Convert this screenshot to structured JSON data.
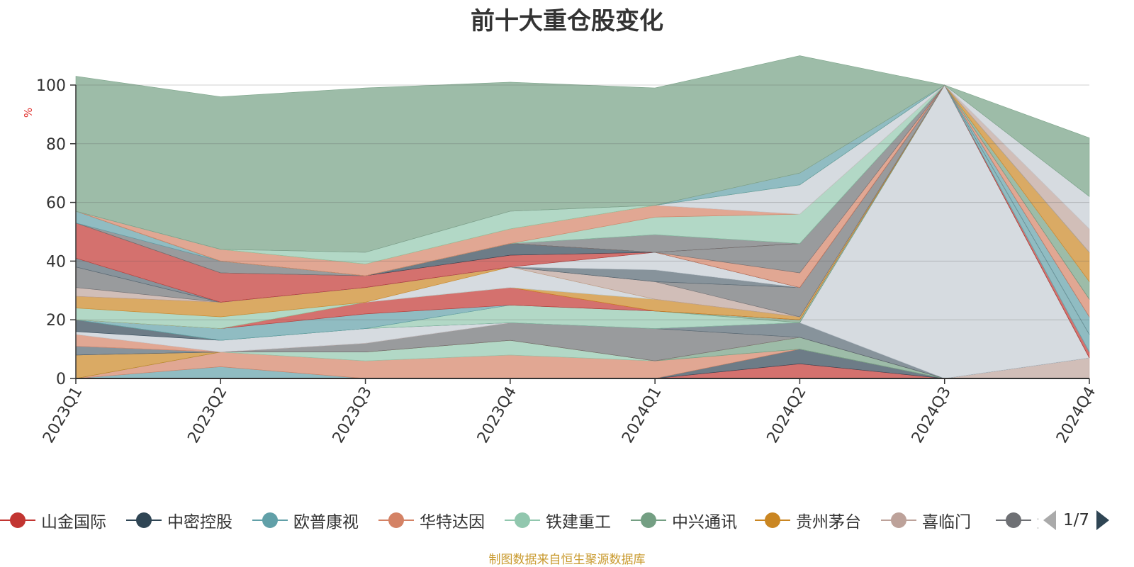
{
  "chart_data": {
    "type": "area",
    "title": "前十大重仓股变化",
    "ylabel": "%",
    "ylim": [
      0,
      100
    ],
    "yticks": [
      0,
      20,
      40,
      60,
      80,
      100
    ],
    "grid": true,
    "stacked": true,
    "categories": [
      "2023Q1",
      "2023Q2",
      "2023Q3",
      "2023Q4",
      "2024Q1",
      "2024Q2",
      "2024Q3",
      "2024Q4"
    ],
    "legend_position": "bottom",
    "legend_page": "1/7",
    "source": "制图数据来自恒生聚源数据库",
    "series": [
      {
        "name": "山金国际",
        "color": "#c23531",
        "values": [
          0,
          0,
          0,
          0,
          0,
          5,
          0,
          0
        ]
      },
      {
        "name": "中密控股",
        "color": "#2f4554",
        "values": [
          0,
          0,
          0,
          0,
          0,
          5,
          0,
          0
        ]
      },
      {
        "name": "欧普康视",
        "color": "#61a0a8",
        "values": [
          0,
          4,
          0,
          0,
          0,
          0,
          0,
          0
        ]
      },
      {
        "name": "华特达因",
        "color": "#d48265",
        "values": [
          0,
          5,
          6,
          8,
          6,
          0,
          0,
          0
        ]
      },
      {
        "name": "铁建重工",
        "color": "#91c7ae",
        "values": [
          0,
          0,
          3,
          5,
          0,
          0,
          0,
          0
        ]
      },
      {
        "name": "中兴通讯",
        "color": "#749f83",
        "values": [
          0,
          0,
          0,
          0,
          0,
          4,
          0,
          0
        ]
      },
      {
        "name": "贵州茅台",
        "color": "#ca8622",
        "values": [
          8,
          0,
          0,
          0,
          0,
          0,
          0,
          0
        ]
      },
      {
        "name": "喜临门",
        "color": "#bda29a",
        "values": [
          0,
          0,
          0,
          0,
          0,
          0,
          0,
          7
        ]
      },
      {
        "name": "大秦铁路",
        "color": "#6e7074",
        "values": [
          0,
          0,
          3,
          6,
          11,
          0,
          0,
          0
        ]
      },
      {
        "name": "",
        "color": "#546570",
        "values": [
          3,
          0,
          0,
          0,
          0,
          5,
          0,
          0
        ]
      },
      {
        "name": "",
        "color": "#c4ccd3",
        "values": [
          0,
          0,
          0,
          0,
          0,
          0,
          100,
          0
        ]
      },
      {
        "name": "",
        "color": "#d48265",
        "values": [
          4,
          0,
          0,
          0,
          0,
          0,
          0,
          0
        ]
      },
      {
        "name": "",
        "color": "#c4ccd3",
        "values": [
          1,
          4,
          5,
          0,
          0,
          0,
          0,
          0
        ]
      },
      {
        "name": "",
        "color": "#2f4554",
        "values": [
          4,
          0,
          0,
          0,
          0,
          0,
          0,
          0
        ]
      },
      {
        "name": "",
        "color": "#91c7ae",
        "values": [
          0,
          0,
          0,
          6,
          6,
          0,
          0,
          0
        ]
      },
      {
        "name": "",
        "color": "#749f83",
        "values": [
          0,
          0,
          0,
          0,
          0,
          1,
          0,
          0
        ]
      },
      {
        "name": "",
        "color": "#61a0a8",
        "values": [
          0,
          4,
          5,
          0,
          0,
          0,
          0,
          0
        ]
      },
      {
        "name": "",
        "color": "#c23531",
        "values": [
          0,
          0,
          4,
          6,
          0,
          0,
          0,
          2
        ]
      },
      {
        "name": "",
        "color": "#ca8622",
        "values": [
          0,
          0,
          0,
          0,
          4,
          1,
          0,
          0
        ]
      },
      {
        "name": "",
        "color": "#91c7ae",
        "values": [
          4,
          4,
          0,
          0,
          0,
          0,
          0,
          0
        ]
      },
      {
        "name": "",
        "color": "#c4ccd3",
        "values": [
          0,
          0,
          0,
          7,
          0,
          0,
          0,
          0
        ]
      },
      {
        "name": "",
        "color": "#ca8622",
        "values": [
          4,
          5,
          5,
          0,
          0,
          0,
          0,
          0
        ]
      },
      {
        "name": "",
        "color": "#bda29a",
        "values": [
          3,
          0,
          0,
          0,
          6,
          0,
          0,
          0
        ]
      },
      {
        "name": "",
        "color": "#6e7074",
        "values": [
          7,
          0,
          0,
          0,
          0,
          10,
          0,
          0
        ]
      },
      {
        "name": "",
        "color": "#546570",
        "values": [
          3,
          0,
          0,
          0,
          4,
          0,
          0,
          0
        ]
      },
      {
        "name": "",
        "color": "#c4ccd3",
        "values": [
          0,
          0,
          0,
          0,
          6,
          0,
          0,
          0
        ]
      },
      {
        "name": "",
        "color": "#61a0a8",
        "values": [
          0,
          0,
          0,
          0,
          0,
          0,
          0,
          6
        ]
      },
      {
        "name": "",
        "color": "#c23531",
        "values": [
          12,
          10,
          4,
          4,
          0,
          0,
          0,
          0
        ]
      },
      {
        "name": "",
        "color": "#2f4554",
        "values": [
          0,
          0,
          0,
          4,
          0,
          0,
          0,
          0
        ]
      },
      {
        "name": "",
        "color": "#d48265",
        "values": [
          0,
          0,
          0,
          0,
          0,
          5,
          0,
          0
        ]
      },
      {
        "name": "",
        "color": "#6e7074",
        "values": [
          0,
          4,
          0,
          0,
          0,
          10,
          0,
          0
        ]
      },
      {
        "name": "",
        "color": "#61a0a8",
        "values": [
          4,
          0,
          0,
          0,
          0,
          0,
          0,
          6
        ]
      },
      {
        "name": "",
        "color": "#2f4554",
        "values": [
          0,
          0,
          0,
          0,
          0,
          0,
          0,
          0
        ]
      },
      {
        "name": "",
        "color": "#d48265",
        "values": [
          0,
          0,
          0,
          0,
          0,
          0,
          0,
          6
        ]
      },
      {
        "name": "",
        "color": "#6e7074",
        "values": [
          0,
          0,
          0,
          0,
          6,
          0,
          0,
          0
        ]
      },
      {
        "name": "",
        "color": "#749f83",
        "values": [
          0,
          0,
          0,
          0,
          0,
          0,
          0,
          6
        ]
      },
      {
        "name": "",
        "color": "#91c7ae",
        "values": [
          0,
          0,
          0,
          0,
          6,
          10,
          0,
          0
        ]
      },
      {
        "name": "",
        "color": "#d48265",
        "values": [
          0,
          4,
          4,
          5,
          4,
          0,
          0,
          0
        ]
      },
      {
        "name": "",
        "color": "#c4ccd3",
        "values": [
          0,
          0,
          0,
          0,
          0,
          10,
          0,
          0
        ]
      },
      {
        "name": "",
        "color": "#ca8622",
        "values": [
          0,
          0,
          0,
          0,
          0,
          0,
          0,
          10
        ]
      },
      {
        "name": "",
        "color": "#91c7ae",
        "values": [
          0,
          0,
          4,
          6,
          0,
          0,
          0,
          0
        ]
      },
      {
        "name": "",
        "color": "#61a0a8",
        "values": [
          0,
          0,
          0,
          0,
          0,
          4,
          0,
          0
        ]
      },
      {
        "name": "",
        "color": "#bda29a",
        "values": [
          0,
          0,
          0,
          0,
          0,
          0,
          0,
          8
        ]
      },
      {
        "name": "",
        "color": "#c4ccd3",
        "values": [
          0,
          0,
          0,
          0,
          0,
          0,
          0,
          11
        ]
      },
      {
        "name": "",
        "color": "#749f83",
        "values": [
          46,
          52,
          56,
          44,
          40,
          40,
          0,
          20
        ]
      }
    ]
  }
}
